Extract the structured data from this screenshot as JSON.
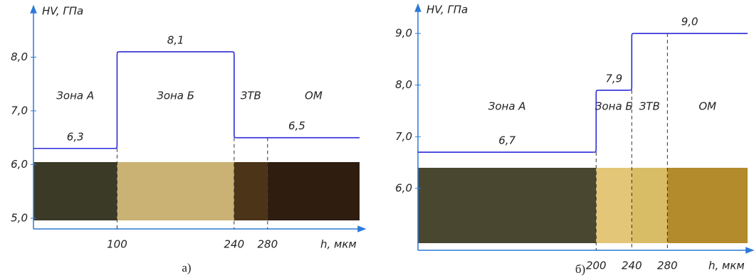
{
  "chart_data": [
    {
      "type": "step",
      "y_label": "HV, ГПа",
      "x_label": "h, мкм",
      "caption": "а)",
      "zones": [
        "Зона А",
        "Зона Б",
        "ЗТВ",
        "ОМ"
      ],
      "levels": [
        {
          "value": 6.3,
          "label": "6,3"
        },
        {
          "value": 8.1,
          "label": "8,1"
        },
        {
          "value": 6.5,
          "label": "6,5"
        }
      ],
      "xlim": [
        0,
        390
      ],
      "xticks": [
        100,
        240,
        280
      ],
      "ylim": [
        4.8,
        8.8
      ],
      "yticks": [
        {
          "value": 5.0,
          "label": "5,0"
        },
        {
          "value": 6.0,
          "label": "6,0"
        },
        {
          "value": 7.0,
          "label": "7,0"
        },
        {
          "value": 8.0,
          "label": "8,0"
        }
      ],
      "color": "#2a2ad8"
    },
    {
      "type": "step",
      "y_label": "HV, ГПа",
      "x_label": "h, мкм",
      "caption": "б)",
      "zones": [
        "Зона А",
        "Зона Б",
        "ЗТВ",
        "ОМ"
      ],
      "levels": [
        {
          "value": 6.7,
          "label": "6,7"
        },
        {
          "value": 7.9,
          "label": "7,9"
        },
        {
          "value": 9.0,
          "label": "9,0"
        }
      ],
      "xlim": [
        0,
        370
      ],
      "xticks": [
        200,
        240,
        280
      ],
      "ylim": [
        4.8,
        9.4
      ],
      "yticks": [
        {
          "value": 6.0,
          "label": "6,0"
        },
        {
          "value": 7.0,
          "label": "7,0"
        },
        {
          "value": 8.0,
          "label": "8,0"
        },
        {
          "value": 9.0,
          "label": "9,0"
        }
      ],
      "color": "#2a2ad8"
    }
  ]
}
